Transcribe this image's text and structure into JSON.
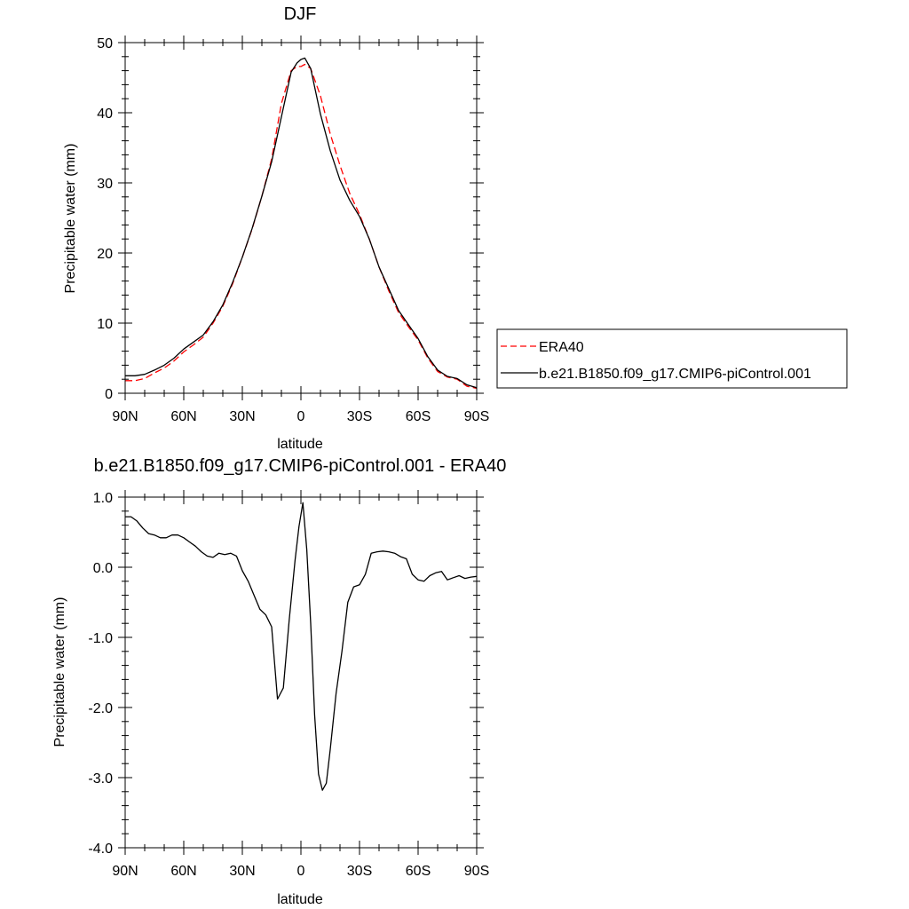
{
  "chart_data": [
    {
      "type": "line",
      "title": "DJF",
      "xlabel": "latitude",
      "ylabel": "Precipitable water (mm)",
      "xlim": [
        90,
        -90
      ],
      "ylim": [
        0,
        50
      ],
      "x_tick_values": [
        90,
        60,
        30,
        0,
        -30,
        -60,
        -90
      ],
      "x_tick_labels": [
        "90N",
        "60N",
        "30N",
        "0",
        "30S",
        "60S",
        "90S"
      ],
      "y_tick_values": [
        0,
        10,
        20,
        30,
        40,
        50
      ],
      "y_tick_labels": [
        "0",
        "10",
        "20",
        "30",
        "40",
        "50"
      ],
      "legend_position": "right",
      "series": [
        {
          "name": "ERA40",
          "color": "#ff0000",
          "dash": true,
          "x": [
            90,
            85,
            80,
            75,
            70,
            65,
            60,
            55,
            50,
            45,
            40,
            35,
            30,
            25,
            20,
            15,
            10,
            5,
            2,
            0,
            -2,
            -5,
            -10,
            -15,
            -20,
            -25,
            -30,
            -35,
            -40,
            -45,
            -50,
            -55,
            -60,
            -65,
            -70,
            -75,
            -80,
            -85,
            -90
          ],
          "values": [
            1.8,
            1.8,
            2.1,
            2.9,
            3.6,
            4.6,
            5.9,
            6.9,
            8.0,
            10.0,
            12.4,
            15.6,
            19.4,
            23.4,
            28.1,
            33.4,
            41.3,
            46.0,
            46.6,
            46.6,
            46.9,
            46.3,
            42.4,
            37.0,
            32.5,
            28.5,
            25.5,
            22.0,
            18.0,
            14.6,
            11.5,
            9.5,
            7.6,
            5.0,
            3.1,
            2.3,
            2.0,
            1.0,
            0.7
          ]
        },
        {
          "name": "b.e21.B1850.f09_g17.CMIP6-piControl.001",
          "color": "#000000",
          "dash": false,
          "x": [
            90,
            85,
            80,
            75,
            70,
            65,
            60,
            55,
            50,
            45,
            40,
            35,
            30,
            25,
            20,
            15,
            10,
            5,
            2,
            0,
            -2,
            -5,
            -10,
            -15,
            -20,
            -25,
            -30,
            -35,
            -40,
            -45,
            -50,
            -55,
            -60,
            -65,
            -70,
            -75,
            -80,
            -85,
            -90
          ],
          "values": [
            2.5,
            2.5,
            2.7,
            3.3,
            4.0,
            5.0,
            6.3,
            7.3,
            8.3,
            10.2,
            12.6,
            15.8,
            19.4,
            23.5,
            28.1,
            33.0,
            39.4,
            45.8,
            47.1,
            47.6,
            47.8,
            46.3,
            39.8,
            34.6,
            30.4,
            27.5,
            25.2,
            22.0,
            18.0,
            14.9,
            11.8,
            9.8,
            7.8,
            5.2,
            3.3,
            2.4,
            2.1,
            1.2,
            0.8
          ]
        }
      ]
    },
    {
      "type": "line",
      "title": "b.e21.B1850.f09_g17.CMIP6-piControl.001 - ERA40",
      "xlabel": "latitude",
      "ylabel": "Precipitable water (mm)",
      "xlim": [
        90,
        -90
      ],
      "ylim": [
        -4,
        1
      ],
      "x_tick_values": [
        90,
        60,
        30,
        0,
        -30,
        -60,
        -90
      ],
      "x_tick_labels": [
        "90N",
        "60N",
        "30N",
        "0",
        "30S",
        "60S",
        "90S"
      ],
      "y_tick_values": [
        1,
        0,
        -1,
        -2,
        -3,
        -4
      ],
      "y_tick_labels": [
        "1.0",
        "0.0",
        "-1.0",
        "-2.0",
        "-3.0",
        "-4.0"
      ],
      "series": [
        {
          "color": "#000000",
          "dash": false,
          "x": [
            90,
            87,
            84,
            81,
            78,
            75,
            72,
            69,
            66,
            63,
            60,
            57,
            54,
            51,
            48,
            45,
            42,
            39,
            36,
            33,
            30,
            27,
            24,
            21,
            18,
            15,
            12,
            9,
            6,
            3,
            1,
            -1,
            -3,
            -5,
            -7,
            -9,
            -11,
            -13,
            -15,
            -18,
            -21,
            -24,
            -27,
            -30,
            -33,
            -36,
            -39,
            -42,
            -45,
            -48,
            -51,
            -54,
            -57,
            -60,
            -63,
            -66,
            -69,
            -72,
            -75,
            -78,
            -81,
            -84,
            -87,
            -90
          ],
          "values": [
            0.72,
            0.72,
            0.66,
            0.56,
            0.48,
            0.46,
            0.42,
            0.42,
            0.46,
            0.46,
            0.42,
            0.36,
            0.3,
            0.22,
            0.16,
            0.14,
            0.2,
            0.18,
            0.2,
            0.16,
            -0.05,
            -0.2,
            -0.4,
            -0.6,
            -0.68,
            -0.85,
            -1.88,
            -1.72,
            -0.75,
            0.1,
            0.58,
            0.92,
            0.25,
            -0.8,
            -2.1,
            -2.95,
            -3.18,
            -3.08,
            -2.6,
            -1.8,
            -1.2,
            -0.5,
            -0.28,
            -0.25,
            -0.1,
            0.2,
            0.22,
            0.23,
            0.22,
            0.2,
            0.15,
            0.12,
            -0.1,
            -0.18,
            -0.2,
            -0.12,
            -0.08,
            -0.06,
            -0.18,
            -0.15,
            -0.12,
            -0.16,
            -0.14,
            -0.13
          ]
        }
      ]
    }
  ]
}
